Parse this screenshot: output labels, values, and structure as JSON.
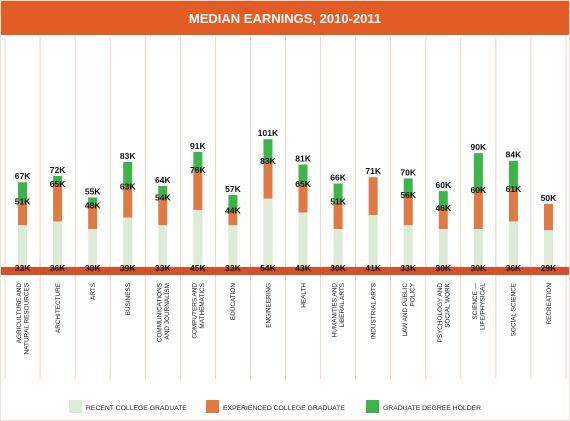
{
  "chart_data": {
    "type": "bar",
    "stacked": true,
    "title": "MEDIAN EARNINGS, 2010-2011",
    "categories": [
      [
        "AGRICULTURE AND",
        "NATURAL RESOURCES"
      ],
      [
        "ARCHITECTURE"
      ],
      [
        "ARTS"
      ],
      [
        "BUSINESS"
      ],
      [
        "COMMUNICATIONS",
        "AND JOURNALISM"
      ],
      [
        "COMPUTERS AND",
        "MATHEMATICS"
      ],
      [
        "EDUCATION"
      ],
      [
        "ENGINEERING"
      ],
      [
        "HEALTH"
      ],
      [
        "HUMANITIES AND",
        "LIBERAL ARTS"
      ],
      [
        "INDUSTRIAL ARTS"
      ],
      [
        "LAW AND PUBLIC",
        "POLICY"
      ],
      [
        "PSYCHOLOGY AND",
        "SOCIAL WORK"
      ],
      [
        "SCIENCE —",
        "LIFE/PHYSICAL"
      ],
      [
        "SOCIAL SCIENCE"
      ],
      [
        "RECREATION"
      ]
    ],
    "series": [
      {
        "name": "RECENT COLLEGE GRADUATE",
        "color": "#dcebd6",
        "values": [
          33,
          36,
          30,
          39,
          33,
          45,
          33,
          54,
          43,
          30,
          41,
          33,
          30,
          30,
          36,
          29
        ],
        "labels": [
          "33K",
          "36K",
          "30K",
          "39K",
          "33K",
          "45K",
          "33K",
          "54K",
          "43K",
          "30K",
          "41K",
          "33K",
          "30K",
          "30K",
          "36K",
          "29K"
        ]
      },
      {
        "name": "EXPERIENCED COLLEGE GRADUATE",
        "color": "#e07a45",
        "values": [
          51,
          65,
          48,
          63,
          54,
          76,
          44,
          83,
          65,
          51,
          71,
          56,
          46,
          60,
          61,
          50
        ],
        "labels": [
          "51K",
          "65K",
          "48K",
          "63K",
          "54K",
          "76K",
          "44K",
          "83K",
          "65K",
          "51K",
          "71K",
          "56K",
          "46K",
          "60K",
          "61K",
          "50K"
        ]
      },
      {
        "name": "GRADUATE DEGREE HOLDER",
        "color": "#3db34a",
        "values": [
          67,
          72,
          55,
          83,
          64,
          91,
          57,
          101,
          81,
          66,
          null,
          70,
          60,
          90,
          84,
          null
        ],
        "labels": [
          "67K",
          "72K",
          "55K",
          "83K",
          "64K",
          "91K",
          "57K",
          "101K",
          "81K",
          "66K",
          "",
          "70K",
          "60K",
          "90K",
          "84K",
          ""
        ]
      }
    ],
    "unit": "K",
    "colors": {
      "header": "#e35b25",
      "baseline": "#d4502a",
      "column_divider": "#f0c9b5"
    }
  }
}
